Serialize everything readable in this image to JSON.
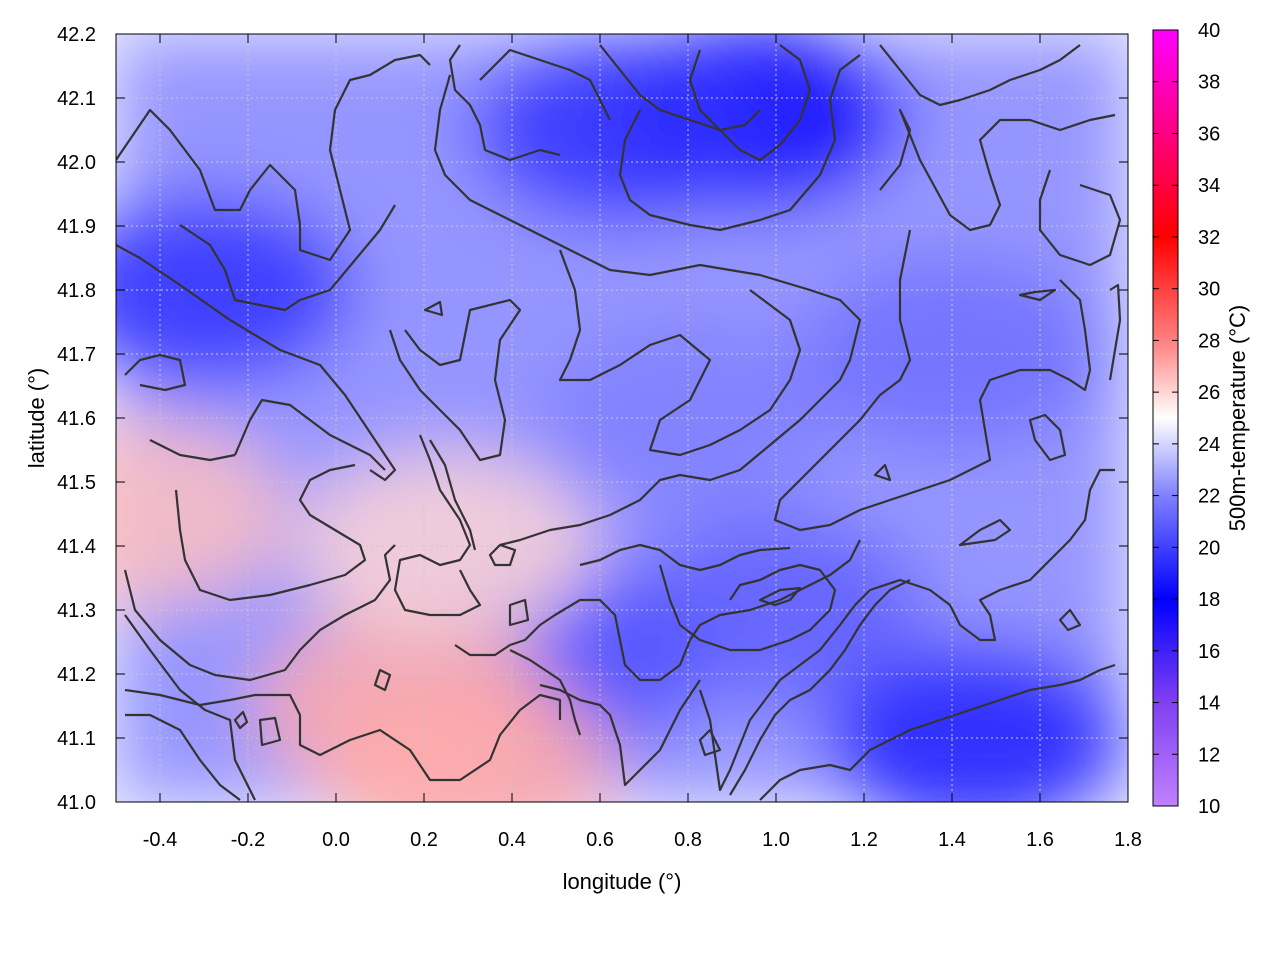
{
  "chart_data": {
    "type": "heatmap",
    "xlabel": "longitude (°)",
    "ylabel": "latitude (°)",
    "colorbar_label": "500m-temperature (°C)",
    "xlim": [
      -0.5,
      1.8
    ],
    "ylim": [
      41.0,
      42.2
    ],
    "x_ticks": [
      -0.4,
      -0.2,
      0.0,
      0.2,
      0.4,
      0.6,
      0.8,
      1.0,
      1.2,
      1.4,
      1.6,
      1.8
    ],
    "x_tick_labels": [
      "-0.4",
      "-0.2",
      "0.0",
      "0.2",
      "0.4",
      "0.6",
      "0.8",
      "1.0",
      "1.2",
      "1.4",
      "1.6",
      "1.8"
    ],
    "y_ticks": [
      41.0,
      41.1,
      41.2,
      41.3,
      41.4,
      41.5,
      41.6,
      41.7,
      41.8,
      41.9,
      42.0,
      42.1,
      42.2
    ],
    "y_tick_labels": [
      "41.0",
      "41.1",
      "41.2",
      "41.3",
      "41.4",
      "41.5",
      "41.6",
      "41.7",
      "41.8",
      "41.9",
      "42.0",
      "42.1",
      "42.2"
    ],
    "colorbar_range": [
      10,
      40
    ],
    "colorbar_ticks": [
      10,
      12,
      14,
      16,
      18,
      20,
      22,
      24,
      26,
      28,
      30,
      32,
      34,
      36,
      38,
      40
    ],
    "colorbar_tick_labels": [
      "10",
      "12",
      "14",
      "16",
      "18",
      "20",
      "22",
      "24",
      "26",
      "28",
      "30",
      "32",
      "34",
      "36",
      "38",
      "40"
    ],
    "colormap": [
      {
        "value": 10,
        "color": "#c080ff"
      },
      {
        "value": 14,
        "color": "#8040f0"
      },
      {
        "value": 18,
        "color": "#0000ff"
      },
      {
        "value": 22,
        "color": "#8080ff"
      },
      {
        "value": 25,
        "color": "#ffffff"
      },
      {
        "value": 28,
        "color": "#ff8080"
      },
      {
        "value": 32,
        "color": "#ff0000"
      },
      {
        "value": 36,
        "color": "#ff0080"
      },
      {
        "value": 40,
        "color": "#ff00ff"
      }
    ],
    "grid": true,
    "contour_color": "#333333",
    "field_features": [
      {
        "name": "cold-northeast",
        "lon": 0.95,
        "lat": 42.07,
        "value": 17.5
      },
      {
        "name": "cold-north-center",
        "lon": 0.65,
        "lat": 42.05,
        "value": 19.5
      },
      {
        "name": "cold-northwest",
        "lon": -0.3,
        "lat": 41.8,
        "value": 19.5
      },
      {
        "name": "cold-southeast-sea",
        "lon": 1.45,
        "lat": 41.1,
        "value": 19.0
      },
      {
        "name": "cool-center",
        "lon": 0.8,
        "lat": 41.6,
        "value": 22.0
      },
      {
        "name": "cool-east",
        "lon": 1.4,
        "lat": 41.7,
        "value": 21.5
      },
      {
        "name": "cool-small-east",
        "lon": 1.0,
        "lat": 41.3,
        "value": 21.0
      },
      {
        "name": "cool-small-south",
        "lon": 0.5,
        "lat": 41.22,
        "value": 20.5
      },
      {
        "name": "warm-southwest",
        "lon": 0.15,
        "lat": 41.15,
        "value": 27.0
      },
      {
        "name": "warm-south",
        "lon": 0.3,
        "lat": 41.05,
        "value": 27.0
      },
      {
        "name": "warm-west-edge",
        "lon": -0.45,
        "lat": 41.45,
        "value": 26.5
      },
      {
        "name": "warm-spur",
        "lon": 0.25,
        "lat": 41.4,
        "value": 26.0
      }
    ]
  }
}
